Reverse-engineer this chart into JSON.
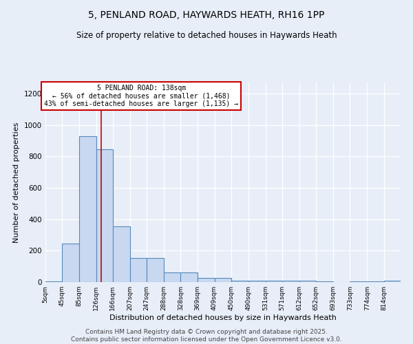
{
  "title": "5, PENLAND ROAD, HAYWARDS HEATH, RH16 1PP",
  "subtitle": "Size of property relative to detached houses in Haywards Heath",
  "xlabel": "Distribution of detached houses by size in Haywards Heath",
  "ylabel": "Number of detached properties",
  "bin_labels": [
    "5sqm",
    "45sqm",
    "85sqm",
    "126sqm",
    "166sqm",
    "207sqm",
    "247sqm",
    "288sqm",
    "328sqm",
    "369sqm",
    "409sqm",
    "450sqm",
    "490sqm",
    "531sqm",
    "571sqm",
    "612sqm",
    "652sqm",
    "693sqm",
    "733sqm",
    "774sqm",
    "814sqm"
  ],
  "bar_heights": [
    5,
    245,
    930,
    845,
    355,
    155,
    155,
    60,
    60,
    25,
    25,
    10,
    10,
    10,
    8,
    8,
    5,
    0,
    5,
    5,
    10
  ],
  "bar_color": "#c8d8f0",
  "bar_edge_color": "#5588bb",
  "bar_edge_width": 0.8,
  "ylim": [
    0,
    1270
  ],
  "yticks": [
    0,
    200,
    400,
    600,
    800,
    1000,
    1200
  ],
  "property_line_x": 138,
  "property_line_color": "#cc0000",
  "annotation_text": "5 PENLAND ROAD: 138sqm\n← 56% of detached houses are smaller (1,468)\n43% of semi-detached houses are larger (1,135) →",
  "annotation_box_color": "#ffffff",
  "annotation_box_edge": "#cc0000",
  "annotation_fontsize": 7,
  "title_fontsize": 10,
  "subtitle_fontsize": 8.5,
  "xlabel_fontsize": 8,
  "ylabel_fontsize": 8,
  "footer_line1": "Contains HM Land Registry data © Crown copyright and database right 2025.",
  "footer_line2": "Contains public sector information licensed under the Open Government Licence v3.0.",
  "footer_fontsize": 6.5,
  "bg_color": "#e8eef8",
  "grid_color": "#d8e4f0",
  "bin_edges": [
    5,
    45,
    85,
    126,
    166,
    207,
    247,
    288,
    328,
    369,
    409,
    450,
    490,
    531,
    571,
    612,
    652,
    693,
    733,
    774,
    814,
    854
  ]
}
